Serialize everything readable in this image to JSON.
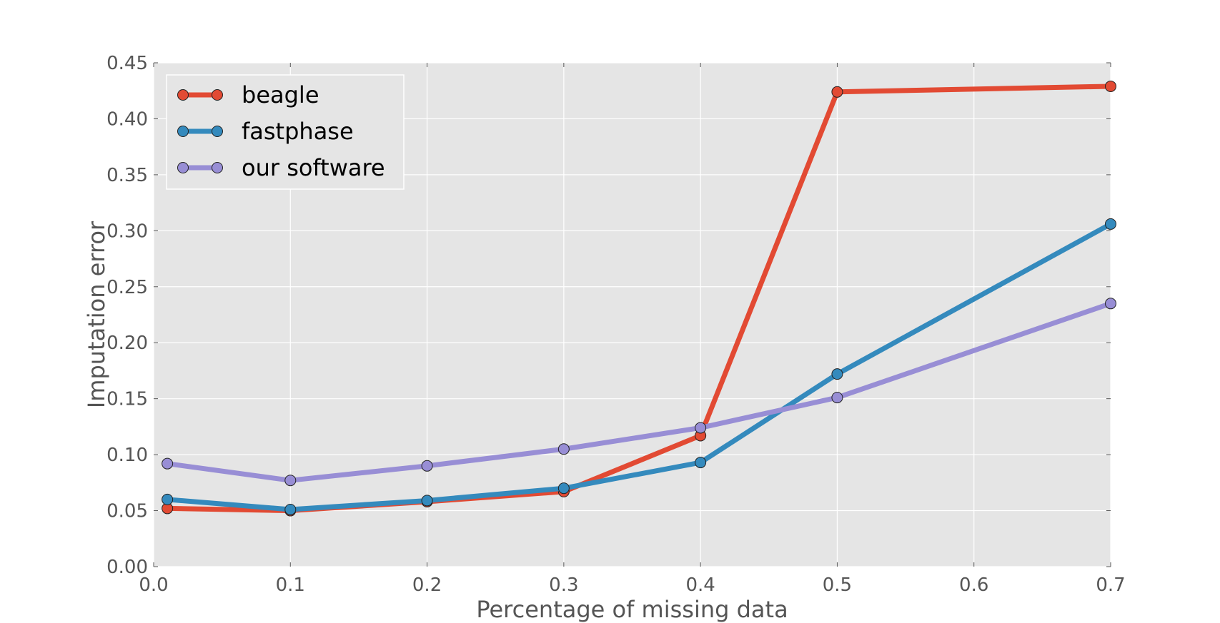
{
  "chart_data": {
    "type": "line",
    "title": "",
    "xlabel": "Percentage of missing data",
    "ylabel": "Imputation error",
    "xlim": [
      0.0,
      0.7
    ],
    "ylim": [
      0.0,
      0.45
    ],
    "xticks": [
      "0.0",
      "0.1",
      "0.2",
      "0.3",
      "0.4",
      "0.5",
      "0.6",
      "0.7"
    ],
    "yticks": [
      "0.00",
      "0.05",
      "0.10",
      "0.15",
      "0.20",
      "0.25",
      "0.30",
      "0.35",
      "0.40",
      "0.45"
    ],
    "grid": true,
    "legend_position": "top-left",
    "x": [
      0.01,
      0.1,
      0.2,
      0.3,
      0.4,
      0.5,
      0.7
    ],
    "series": [
      {
        "name": "beagle",
        "color": "#E24A33",
        "values": [
          0.052,
          0.05,
          0.058,
          0.067,
          0.117,
          0.424,
          0.429
        ]
      },
      {
        "name": "fastphase",
        "color": "#348ABD",
        "values": [
          0.06,
          0.051,
          0.059,
          0.07,
          0.093,
          0.172,
          0.306
        ]
      },
      {
        "name": "our software",
        "color": "#988ED5",
        "values": [
          0.092,
          0.077,
          0.09,
          0.105,
          0.124,
          0.151,
          0.235
        ]
      }
    ],
    "plot_background": "#E5E5E5"
  }
}
